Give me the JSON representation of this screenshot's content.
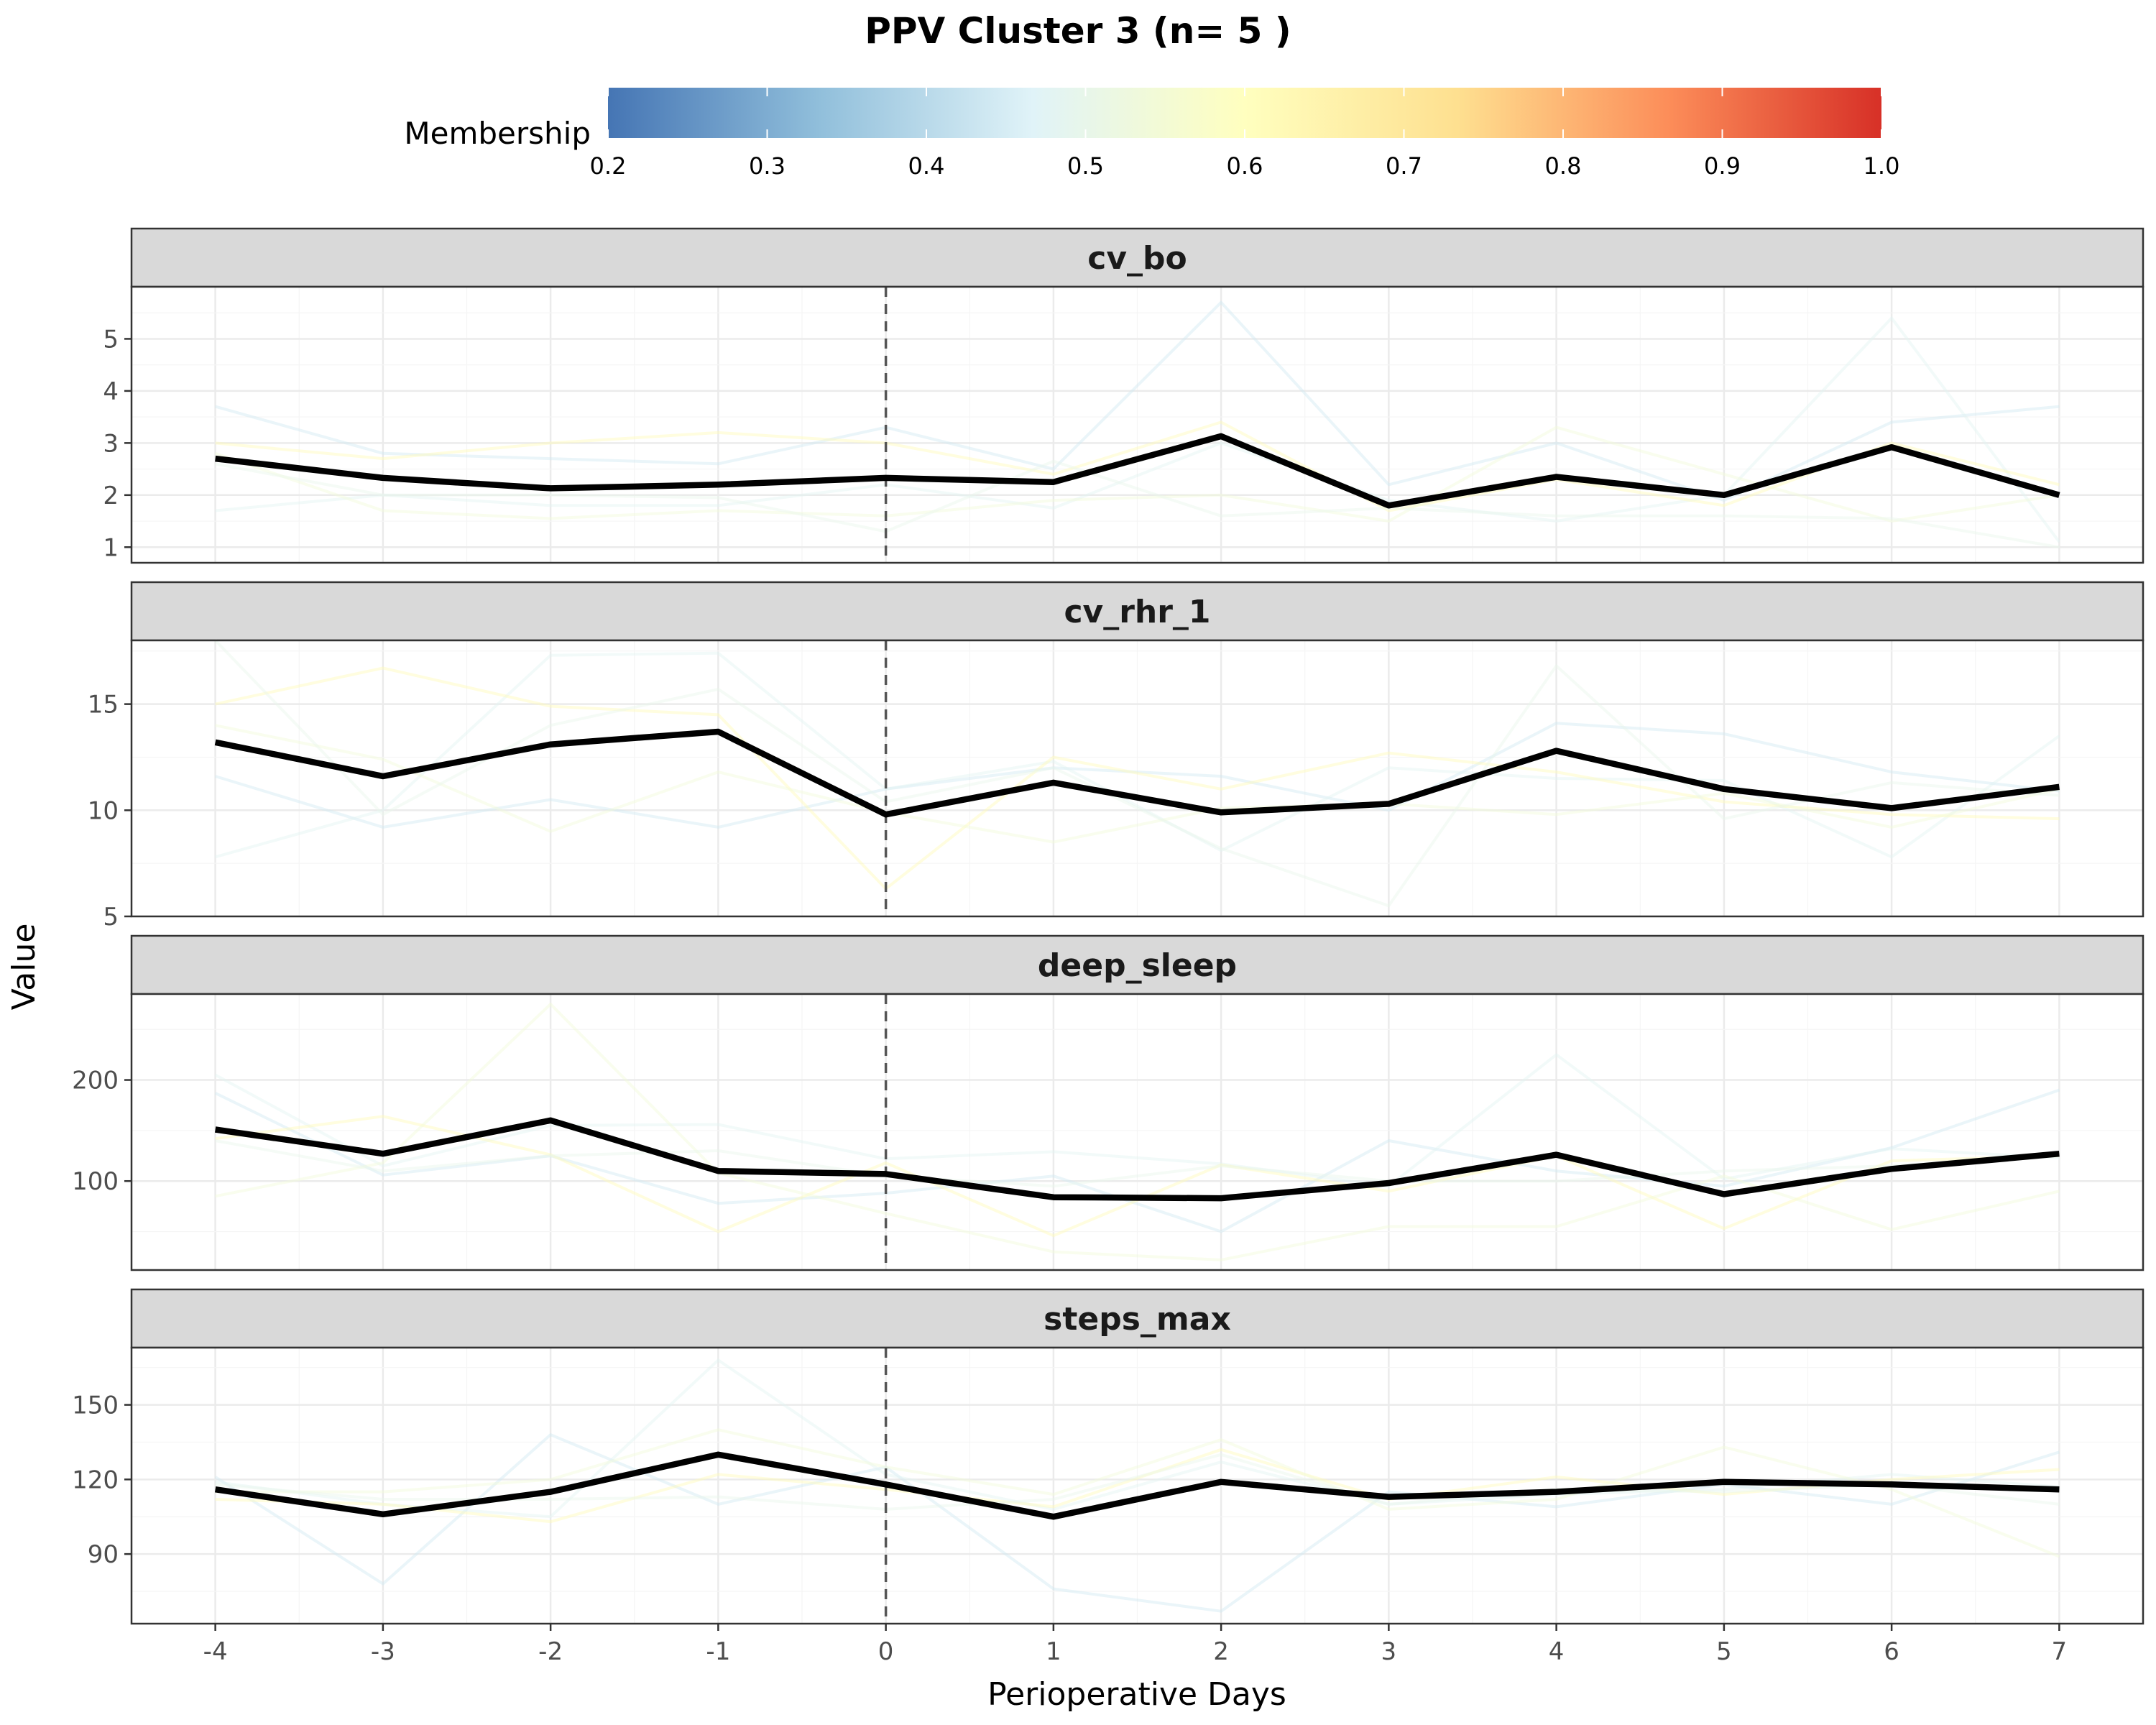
{
  "chart_data": {
    "type": "line",
    "title": "PPV Cluster 3 (n= 5 )",
    "xlabel": "Perioperative Days",
    "ylabel": "Value",
    "x": [
      -4,
      -3,
      -2,
      -1,
      0,
      1,
      2,
      3,
      4,
      5,
      6,
      7
    ],
    "xlim": [
      -4.5,
      7.5
    ],
    "vline_x": 0,
    "grid": true,
    "legend": {
      "title": "Membership",
      "placement": "top",
      "ticks": [
        "0.2",
        "0.3",
        "0.4",
        "0.5",
        "0.6",
        "0.7",
        "0.8",
        "0.9",
        "1.0"
      ],
      "range": [
        0.2,
        1.0
      ],
      "colors": [
        "#4575b4",
        "#91bfdb",
        "#e0f3f8",
        "#ffffbf",
        "#fee090",
        "#fc8d59",
        "#d73027"
      ]
    },
    "mean_color": "#000000",
    "panels": [
      {
        "name": "cv_bo",
        "ylim": [
          0.7,
          6.0
        ],
        "yticks": [
          1,
          2,
          3,
          4,
          5
        ],
        "mean": [
          2.7,
          2.33,
          2.13,
          2.2,
          2.33,
          2.25,
          3.13,
          1.8,
          2.35,
          2.0,
          2.92,
          2.0
        ],
        "members": [
          {
            "membership": 0.44,
            "values": [
              3.7,
              2.8,
              2.7,
              2.6,
              3.3,
              2.5,
              5.7,
              2.2,
              3.0,
              1.9,
              3.4,
              3.7
            ]
          },
          {
            "membership": 0.48,
            "values": [
              1.7,
              2.0,
              1.8,
              1.8,
              2.2,
              1.75,
              3.0,
              1.9,
              1.5,
              2.0,
              5.4,
              1.1
            ]
          },
          {
            "membership": 0.62,
            "values": [
              3.0,
              2.7,
              3.0,
              3.2,
              3.0,
              2.4,
              3.4,
              1.7,
              2.3,
              1.8,
              3.0,
              2.2
            ]
          },
          {
            "membership": 0.54,
            "values": [
              2.8,
              1.7,
              1.55,
              1.7,
              1.6,
              1.9,
              2.0,
              1.5,
              3.3,
              2.4,
              1.5,
              2.0
            ]
          },
          {
            "membership": 0.5,
            "values": [
              2.6,
              2.0,
              2.0,
              1.95,
              1.3,
              2.65,
              1.6,
              1.75,
              1.6,
              1.6,
              1.55,
              1.0
            ]
          }
        ]
      },
      {
        "name": "cv_rhr_1",
        "ylim": [
          5.0,
          18.0
        ],
        "yticks": [
          5,
          10,
          15
        ],
        "mean": [
          13.2,
          11.6,
          13.1,
          13.7,
          9.8,
          11.3,
          9.9,
          10.3,
          12.8,
          11.0,
          10.1,
          11.1
        ],
        "members": [
          {
            "membership": 0.44,
            "values": [
              11.6,
              9.2,
              10.5,
              9.2,
              11.0,
              12.0,
              11.6,
              10.0,
              14.1,
              13.6,
              11.8,
              10.9
            ]
          },
          {
            "membership": 0.48,
            "values": [
              7.8,
              10.0,
              17.3,
              17.4,
              11.0,
              12.3,
              8.1,
              12.0,
              11.5,
              11.4,
              7.8,
              13.5
            ]
          },
          {
            "membership": 0.62,
            "values": [
              15.0,
              16.7,
              14.9,
              14.5,
              6.3,
              12.5,
              11.0,
              12.7,
              11.8,
              10.4,
              9.8,
              9.6
            ]
          },
          {
            "membership": 0.54,
            "values": [
              14.0,
              12.4,
              9.0,
              11.8,
              9.9,
              8.5,
              10.1,
              10.3,
              9.8,
              10.8,
              9.2,
              11.0
            ]
          },
          {
            "membership": 0.5,
            "values": [
              18.0,
              9.8,
              14.0,
              15.7,
              10.4,
              12.0,
              8.2,
              5.5,
              16.8,
              9.6,
              11.3,
              10.7
            ]
          }
        ]
      },
      {
        "name": "deep_sleep",
        "ylim": [
          12,
          285
        ],
        "yticks": [
          100,
          200
        ],
        "mean": [
          151,
          127,
          160,
          110,
          107,
          84,
          83,
          98,
          126,
          87,
          112,
          127
        ],
        "members": [
          {
            "membership": 0.44,
            "values": [
              187,
              106,
              125,
              78,
              88,
              105,
              50,
              140,
              110,
              95,
              133,
              190
            ]
          },
          {
            "membership": 0.48,
            "values": [
              205,
              115,
              155,
              156,
              122,
              129,
              117,
              95,
              225,
              102,
              132,
              123
            ]
          },
          {
            "membership": 0.62,
            "values": [
              142,
              164,
              126,
              50,
              118,
              46,
              116,
              90,
              125,
              53,
              120,
              125
            ]
          },
          {
            "membership": 0.54,
            "values": [
              85,
              118,
              275,
              108,
              68,
              30,
              22,
              55,
              55,
              105,
              52,
              90
            ]
          },
          {
            "membership": 0.5,
            "values": [
              140,
              110,
              125,
              130,
              105,
              95,
              115,
              100,
              100,
              110,
              115,
              125
            ]
          }
        ]
      },
      {
        "name": "steps_max",
        "ylim": [
          62,
          173
        ],
        "yticks": [
          90,
          120,
          150
        ],
        "mean": [
          116,
          106,
          115,
          130,
          118,
          105,
          119,
          113,
          115,
          119,
          118,
          116
        ],
        "members": [
          {
            "membership": 0.44,
            "values": [
              121,
              78,
              138,
              110,
              125,
              76,
              67,
              115,
              109,
              118,
              110,
              131
            ]
          },
          {
            "membership": 0.48,
            "values": [
              119,
              110,
              105,
              168,
              122,
              108,
              127,
              110,
              114,
              116,
              122,
              117
            ]
          },
          {
            "membership": 0.62,
            "values": [
              112,
              110,
              103,
              122,
              116,
              109,
              132,
              112,
              121,
              114,
              120,
              124
            ]
          },
          {
            "membership": 0.54,
            "values": [
              115,
              115,
              120,
              140,
              125,
              114,
              136,
              108,
              112,
              133,
              116,
              89
            ]
          },
          {
            "membership": 0.5,
            "values": [
              118,
              112,
              112,
              113,
              108,
              112,
              130,
              110,
              116,
              115,
              118,
              110
            ]
          }
        ]
      }
    ]
  }
}
